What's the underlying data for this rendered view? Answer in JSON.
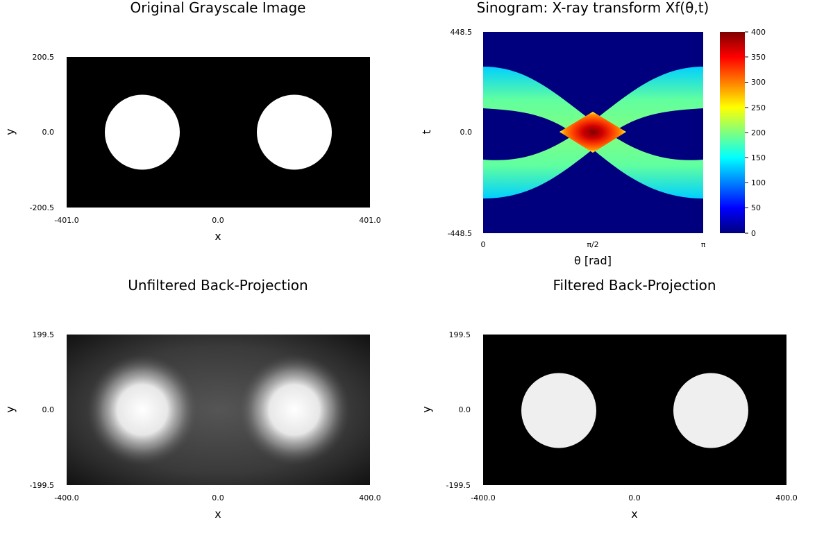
{
  "chart_data": [
    {
      "type": "heatmap",
      "title": "Original Grayscale Image",
      "xlabel": "x",
      "ylabel": "y",
      "xlim": [
        -401.0,
        401.0
      ],
      "ylim": [
        -200.5,
        200.5
      ],
      "xticks": [
        "-401.0",
        "0.0",
        "401.0"
      ],
      "yticks": [
        "200.5",
        "0.0",
        "-200.5"
      ],
      "colormap": "grayscale",
      "background_value": 0,
      "objects": [
        {
          "shape": "disk",
          "cx": -200,
          "cy": 0,
          "r": 100,
          "value": 1
        },
        {
          "shape": "disk",
          "cx": 200,
          "cy": 0,
          "r": 100,
          "value": 1
        }
      ]
    },
    {
      "type": "heatmap",
      "title": "Sinogram: X-ray transform Xf(θ,t)",
      "xlabel": "θ [rad]",
      "ylabel": "t",
      "xlim": [
        0,
        3.14159
      ],
      "ylim": [
        -448.5,
        448.5
      ],
      "xticks": [
        "0",
        "π/2",
        "π"
      ],
      "yticks": [
        "448.5",
        "0.0",
        "-448.5"
      ],
      "colormap": "jet",
      "colorbar": {
        "min": 0,
        "max": 400,
        "ticks": [
          "400",
          "350",
          "300",
          "250",
          "200",
          "150",
          "100",
          "50",
          "0"
        ]
      }
    },
    {
      "type": "heatmap",
      "title": "Unfiltered Back-Projection",
      "xlabel": "x",
      "ylabel": "y",
      "xlim": [
        -400.0,
        400.0
      ],
      "ylim": [
        -199.5,
        199.5
      ],
      "xticks": [
        "-400.0",
        "0.0",
        "400.0"
      ],
      "yticks": [
        "199.5",
        "0.0",
        "-199.5"
      ],
      "colormap": "grayscale",
      "objects": [
        {
          "shape": "blurred-disk",
          "cx": -200,
          "cy": 0,
          "r": 100
        },
        {
          "shape": "blurred-disk",
          "cx": 200,
          "cy": 0,
          "r": 100
        }
      ]
    },
    {
      "type": "heatmap",
      "title": "Filtered Back-Projection",
      "xlabel": "x",
      "ylabel": "y",
      "xlim": [
        -400.0,
        400.0
      ],
      "ylim": [
        -199.5,
        199.5
      ],
      "xticks": [
        "-400.0",
        "0.0",
        "400.0"
      ],
      "yticks": [
        "199.5",
        "0.0",
        "-199.5"
      ],
      "colormap": "grayscale",
      "background_value": 0,
      "objects": [
        {
          "shape": "disk",
          "cx": -200,
          "cy": 0,
          "r": 100,
          "value": 0.95
        },
        {
          "shape": "disk",
          "cx": 200,
          "cy": 0,
          "r": 100,
          "value": 0.95
        }
      ]
    }
  ]
}
